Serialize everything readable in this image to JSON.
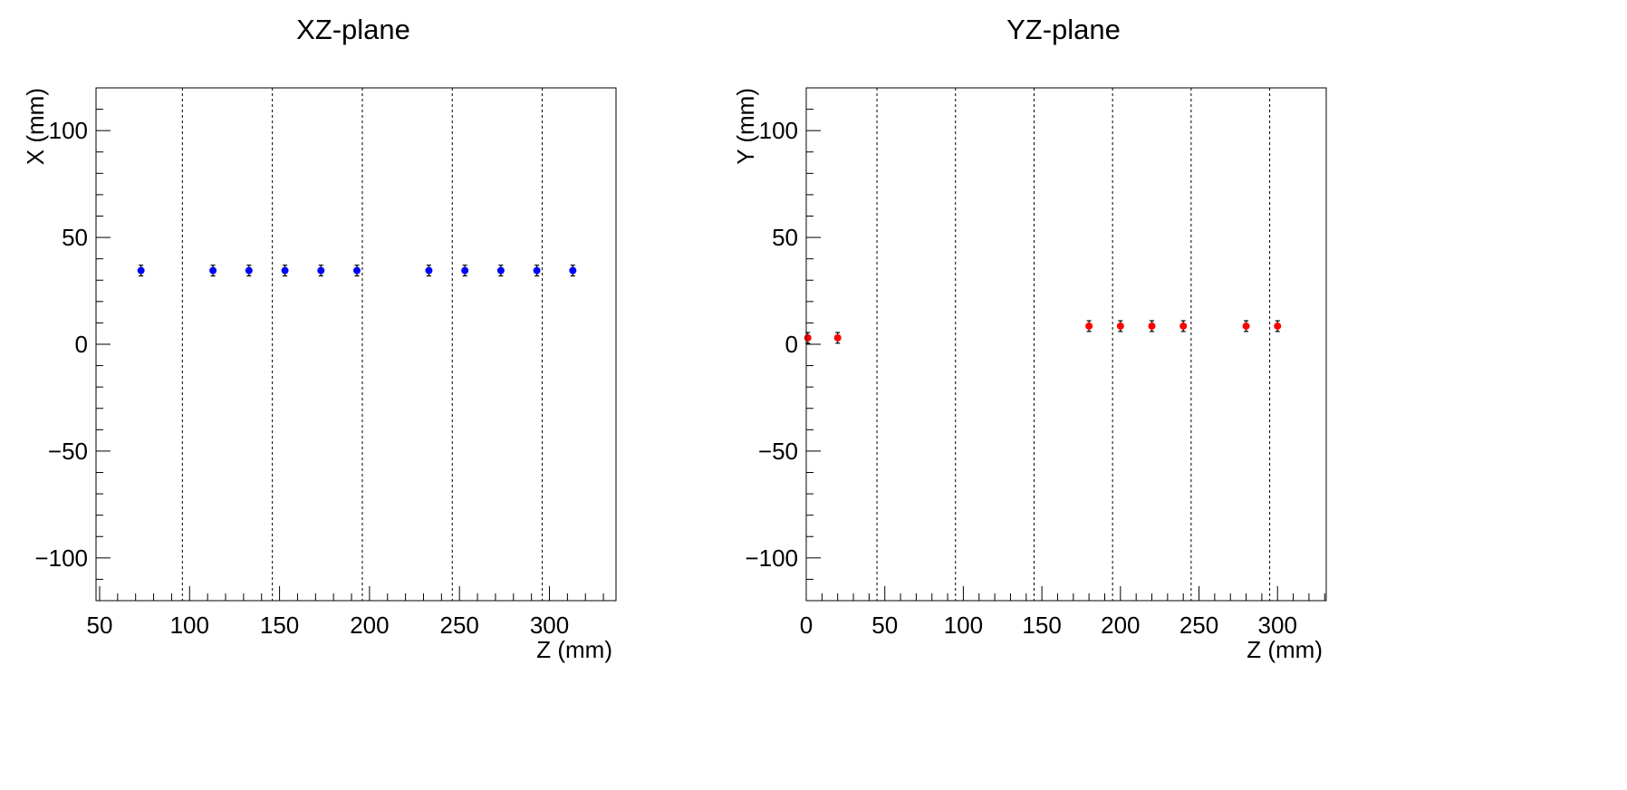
{
  "chart_data": [
    {
      "type": "scatter",
      "title": "XZ-plane",
      "xlabel": "Z (mm)",
      "ylabel": "X (mm)",
      "xlim": [
        48,
        337
      ],
      "ylim": [
        -120,
        120
      ],
      "xticks": [
        50,
        100,
        150,
        200,
        250,
        300
      ],
      "yticks": [
        -100,
        -50,
        0,
        50,
        100
      ],
      "x_minor_step": 10,
      "y_minor_step": 10,
      "grid_lines_x": [
        96,
        146,
        196,
        246,
        296
      ],
      "series": [
        {
          "color": "#0000ff",
          "x": [
            73,
            113,
            133,
            153,
            173,
            193,
            233,
            253,
            273,
            293,
            313
          ],
          "y": [
            34.5,
            34.5,
            34.5,
            34.5,
            34.5,
            34.5,
            34.5,
            34.5,
            34.5,
            34.5,
            34.5
          ],
          "yerr": [
            2.5,
            2.5,
            2.5,
            2.5,
            2.5,
            2.5,
            2.5,
            2.5,
            2.5,
            2.5,
            2.5
          ]
        }
      ]
    },
    {
      "type": "scatter",
      "title": "YZ-plane",
      "xlabel": "Z (mm)",
      "ylabel": "Y (mm)",
      "xlim": [
        0,
        331
      ],
      "ylim": [
        -120,
        120
      ],
      "xticks": [
        0,
        50,
        100,
        150,
        200,
        250,
        300
      ],
      "yticks": [
        -100,
        -50,
        0,
        50,
        100
      ],
      "x_minor_step": 10,
      "y_minor_step": 10,
      "grid_lines_x": [
        45,
        95,
        145,
        195,
        245,
        295
      ],
      "series": [
        {
          "color": "#ff0000",
          "x": [
            1,
            20,
            180,
            200,
            220,
            240,
            280,
            300
          ],
          "y": [
            3,
            3,
            8.5,
            8.5,
            8.5,
            8.5,
            8.5,
            8.5
          ],
          "yerr": [
            2.5,
            2.5,
            2.5,
            2.5,
            2.5,
            2.5,
            2.5,
            2.5
          ]
        }
      ]
    }
  ]
}
